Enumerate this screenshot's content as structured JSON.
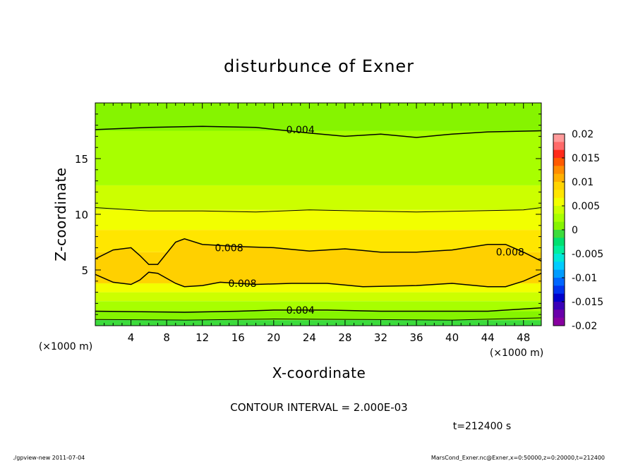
{
  "chart_data": {
    "type": "heatmap",
    "title": "disturbunce of Exner",
    "xlabel": "X-coordinate",
    "ylabel": "Z-coordinate",
    "x_unit_label": "(×1000 m)",
    "y_unit_label": "(×1000 m)",
    "xlim": [
      0,
      50
    ],
    "ylim": [
      0,
      20
    ],
    "x_ticks": [
      "4",
      "8",
      "12",
      "16",
      "20",
      "24",
      "28",
      "32",
      "36",
      "40",
      "44",
      "48"
    ],
    "x_tick_values": [
      4,
      8,
      12,
      16,
      20,
      24,
      28,
      32,
      36,
      40,
      44,
      48
    ],
    "y_ticks": [
      "5",
      "10",
      "15"
    ],
    "y_tick_values": [
      5,
      10,
      15
    ],
    "colorbar": {
      "labels": [
        "0.02",
        "0.015",
        "0.01",
        "0.005",
        "0",
        "-0.005",
        "-0.01",
        "-0.015",
        "-0.02"
      ],
      "values": [
        0.02,
        0.015,
        0.01,
        0.005,
        0,
        -0.005,
        -0.01,
        -0.015,
        -0.02
      ],
      "colors": [
        "#ff9a9a",
        "#ff6a6a",
        "#ff2a1a",
        "#ff5a00",
        "#ff8c00",
        "#ffb000",
        "#ffd400",
        "#ffe600",
        "#f2ff00",
        "#ccff00",
        "#a8ff00",
        "#86f400",
        "#3cdc3c",
        "#00e070",
        "#00ee9e",
        "#00e8d8",
        "#00ccff",
        "#009cff",
        "#0066ff",
        "#0033ee",
        "#0000cc",
        "#3a00b8",
        "#6a00aa",
        "#8800a0"
      ]
    },
    "contour_interval": "CONTOUR INTERVAL = 2.000E-03",
    "time_label": "t=212400 s",
    "contour_labels": [
      {
        "text": "0.004",
        "x": 23,
        "z": 17.6
      },
      {
        "text": "0.008",
        "x": 15,
        "z": 7.0
      },
      {
        "text": "0.008",
        "x": 16.5,
        "z": 3.8
      },
      {
        "text": "0.008",
        "x": 46.5,
        "z": 6.6
      },
      {
        "text": "0.004",
        "x": 23,
        "z": 1.4
      }
    ],
    "contours": [
      {
        "level": 0.004,
        "points": [
          [
            0,
            17.6
          ],
          [
            6,
            17.8
          ],
          [
            12,
            17.9
          ],
          [
            18,
            17.8
          ],
          [
            24,
            17.3
          ],
          [
            28,
            17.0
          ],
          [
            32,
            17.2
          ],
          [
            36,
            16.9
          ],
          [
            40,
            17.2
          ],
          [
            44,
            17.4
          ],
          [
            50,
            17.5
          ]
        ]
      },
      {
        "level": 0.006,
        "points": [
          [
            0,
            10.6
          ],
          [
            6,
            10.3
          ],
          [
            12,
            10.3
          ],
          [
            18,
            10.2
          ],
          [
            24,
            10.4
          ],
          [
            30,
            10.3
          ],
          [
            36,
            10.2
          ],
          [
            42,
            10.3
          ],
          [
            48,
            10.4
          ],
          [
            50,
            10.6
          ]
        ]
      },
      {
        "level": 0.008,
        "points": [
          [
            0,
            6.0
          ],
          [
            2,
            6.8
          ],
          [
            4,
            7.0
          ],
          [
            5,
            6.3
          ],
          [
            6,
            5.5
          ],
          [
            7,
            5.5
          ],
          [
            9,
            7.5
          ],
          [
            10,
            7.8
          ],
          [
            12,
            7.3
          ],
          [
            16,
            7.1
          ],
          [
            20,
            7.0
          ],
          [
            24,
            6.7
          ],
          [
            28,
            6.9
          ],
          [
            32,
            6.6
          ],
          [
            36,
            6.6
          ],
          [
            40,
            6.8
          ],
          [
            44,
            7.3
          ],
          [
            46,
            7.3
          ],
          [
            48,
            6.6
          ],
          [
            50,
            5.8
          ]
        ]
      },
      {
        "level": 0.008,
        "points": [
          [
            0,
            4.6
          ],
          [
            2,
            3.9
          ],
          [
            4,
            3.7
          ],
          [
            5,
            4.1
          ],
          [
            6,
            4.8
          ],
          [
            7,
            4.7
          ],
          [
            9,
            3.8
          ],
          [
            10,
            3.5
          ],
          [
            12,
            3.6
          ],
          [
            14,
            3.9
          ],
          [
            18,
            3.7
          ],
          [
            22,
            3.8
          ],
          [
            26,
            3.8
          ],
          [
            30,
            3.5
          ],
          [
            36,
            3.6
          ],
          [
            40,
            3.8
          ],
          [
            44,
            3.5
          ],
          [
            46,
            3.5
          ],
          [
            48,
            4.0
          ],
          [
            50,
            4.7
          ]
        ]
      },
      {
        "level": 0.004,
        "points": [
          [
            0,
            1.3
          ],
          [
            10,
            1.2
          ],
          [
            16,
            1.3
          ],
          [
            20,
            1.4
          ],
          [
            26,
            1.4
          ],
          [
            32,
            1.3
          ],
          [
            38,
            1.3
          ],
          [
            44,
            1.3
          ],
          [
            50,
            1.6
          ]
        ]
      },
      {
        "level": 0.002,
        "points": [
          [
            0,
            0.55
          ],
          [
            10,
            0.5
          ],
          [
            20,
            0.6
          ],
          [
            30,
            0.55
          ],
          [
            40,
            0.5
          ],
          [
            50,
            0.7
          ]
        ]
      }
    ],
    "bands": [
      {
        "z0": 0.0,
        "z1": 0.5,
        "color": "#3cdc3c"
      },
      {
        "z0": 0.5,
        "z1": 1.3,
        "color": "#86f400"
      },
      {
        "z0": 1.3,
        "z1": 2.2,
        "color": "#a8ff00"
      },
      {
        "z0": 2.2,
        "z1": 3.0,
        "color": "#ccff00"
      },
      {
        "z0": 3.0,
        "z1": 3.8,
        "color": "#f2ff00"
      },
      {
        "z0": 3.8,
        "z1": 6.6,
        "color": "#ffd400"
      },
      {
        "z0": 6.6,
        "z1": 8.6,
        "color": "#ffe600"
      },
      {
        "z0": 8.6,
        "z1": 10.4,
        "color": "#f2ff00"
      },
      {
        "z0": 10.4,
        "z1": 12.6,
        "color": "#ccff00"
      },
      {
        "z0": 12.6,
        "z1": 17.5,
        "color": "#a8ff00"
      },
      {
        "z0": 17.5,
        "z1": 20.0,
        "color": "#86f400"
      }
    ]
  },
  "footer": {
    "left": "./gpview-new   2011-07-04",
    "right": "MarsCond_Exner.nc@Exner,x=0:50000,z=0:20000,t=212400"
  }
}
